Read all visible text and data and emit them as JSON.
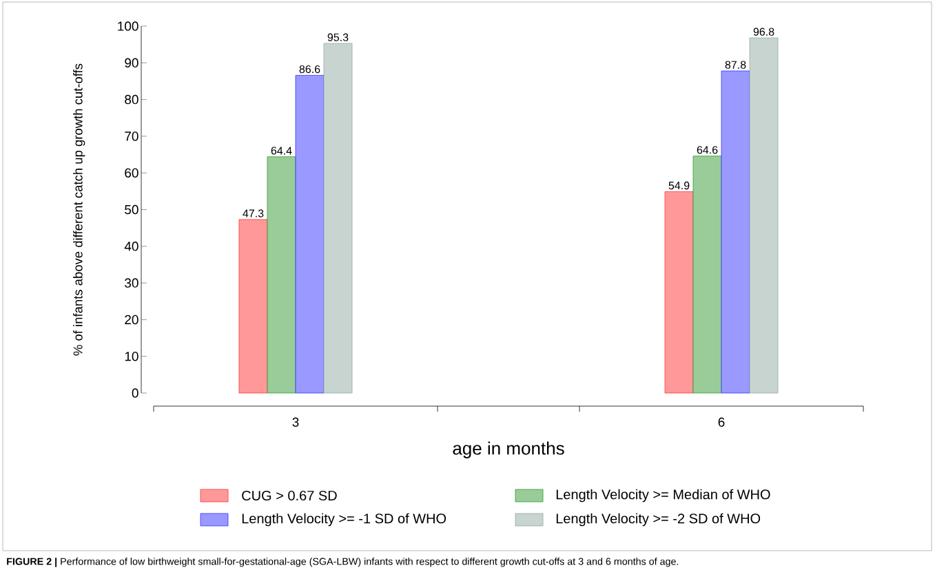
{
  "chart_data": {
    "type": "bar",
    "categories": [
      "3",
      "6"
    ],
    "series": [
      {
        "name": "CUG > 0.67 SD",
        "color": "#ff9999",
        "values": [
          47.3,
          54.9
        ]
      },
      {
        "name": "Length Velocity >=  Median of WHO",
        "color": "#99cc99",
        "values": [
          64.4,
          64.6
        ]
      },
      {
        "name": "Length Velocity >= -1 SD of WHO",
        "color": "#9999ff",
        "values": [
          86.6,
          87.8
        ]
      },
      {
        "name": "Length Velocity >= -2 SD of WHO",
        "color": "#c8d4d0",
        "values": [
          95.3,
          96.8
        ]
      }
    ],
    "ylim": [
      0,
      100
    ],
    "yticks": [
      0,
      10,
      20,
      30,
      40,
      50,
      60,
      70,
      80,
      90,
      100
    ],
    "xlabel": "age in months",
    "ylabel": "% of infants above different catch up growth cut-offs",
    "annotations": [
      "**FIGURE 2 |** Performance of low birthweight small-for-gestational-age (SGA-LBW) infants with respect to different growth cut-offs at 3 and 6 months of age."
    ],
    "data_labels": true,
    "grid": false,
    "legend": "bottom"
  }
}
